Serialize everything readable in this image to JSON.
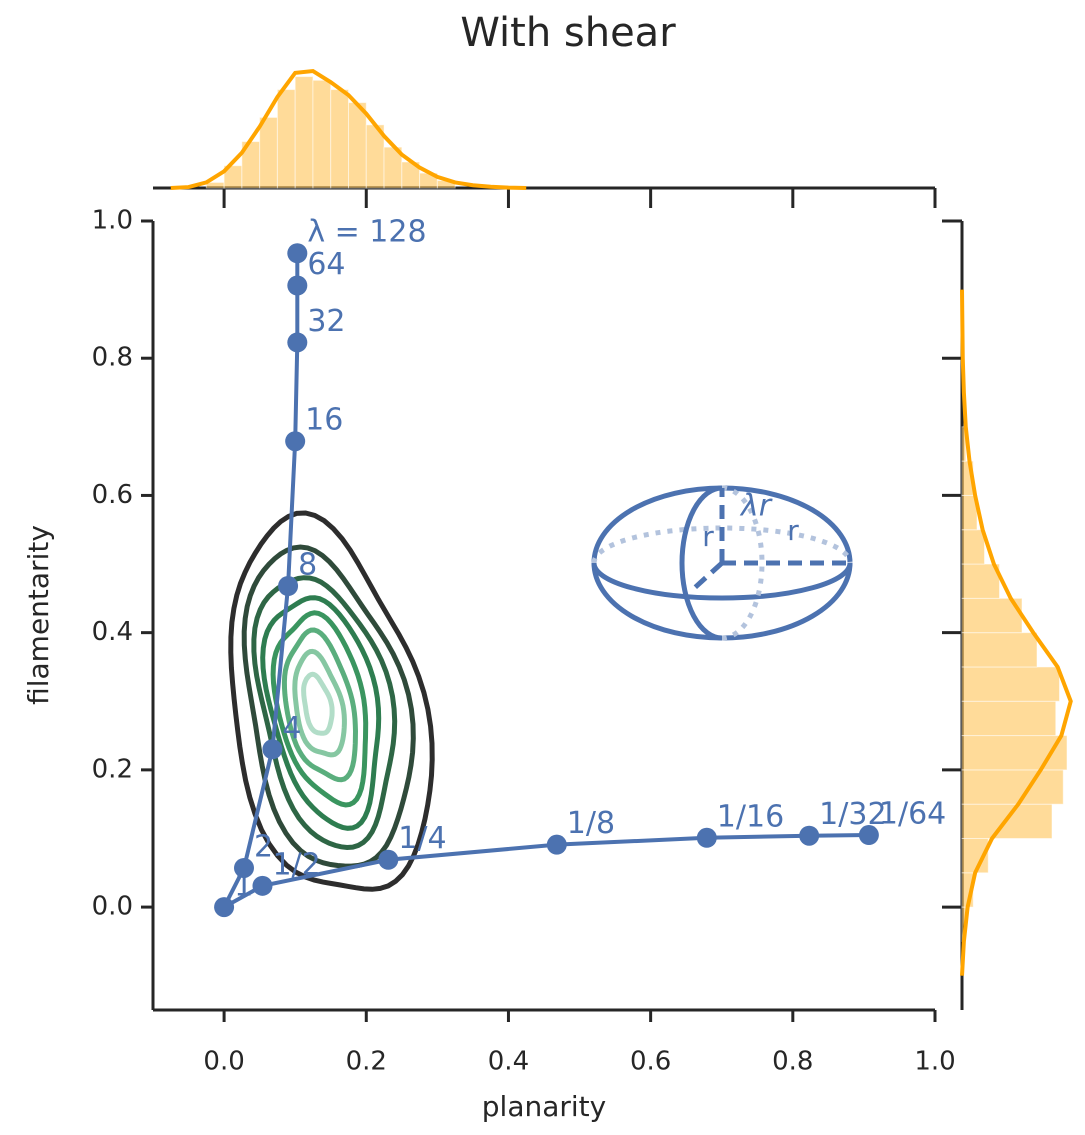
{
  "chart_data": [
    {
      "type": "line",
      "title": "With shear",
      "xlabel": "planarity",
      "ylabel": "filamentarity",
      "xlim": [
        -0.1,
        1.0
      ],
      "ylim": [
        -0.15,
        1.0
      ],
      "xticks": [
        {
          "value": 0,
          "label": "0.0"
        },
        {
          "value": 0.2,
          "label": "0.2"
        },
        {
          "value": 0.4,
          "label": "0.4"
        },
        {
          "value": 0.6,
          "label": "0.6"
        },
        {
          "value": 0.8,
          "label": "0.8"
        },
        {
          "value": 1.0,
          "label": "1.0"
        }
      ],
      "yticks": [
        {
          "value": 0,
          "label": "0.0"
        },
        {
          "value": 0.2,
          "label": "0.2"
        },
        {
          "value": 0.4,
          "label": "0.4"
        },
        {
          "value": 0.6,
          "label": "0.6"
        },
        {
          "value": 0.8,
          "label": "0.8"
        },
        {
          "value": 1.0,
          "label": "1.0"
        }
      ],
      "series": [
        {
          "color": "#4c72b0",
          "x": [
            0.103,
            0.103,
            0.103,
            0.1,
            0.09,
            0.068,
            0.028,
            0,
            0.054,
            0.231,
            0.468,
            0.679,
            0.823,
            0.907
          ],
          "values": [
            0.953,
            0.906,
            0.823,
            0.679,
            0.468,
            0.23,
            0.057,
            0,
            0.031,
            0.069,
            0.091,
            0.101,
            0.104,
            0.105
          ],
          "point_labels": [
            "λ = 128",
            "64",
            "32",
            "16",
            "8",
            "4",
            "2",
            "1",
            "1/2",
            "1/4",
            "1/8",
            "1/16",
            "1/32",
            "1/64"
          ]
        }
      ],
      "annotations": [
        "λr",
        "r",
        "r"
      ]
    },
    {
      "type": "histogram",
      "orientation": "vertical",
      "color": "#ffa500",
      "xlim": [
        -0.1,
        1.0
      ],
      "ylim": [
        0,
        7
      ],
      "bins": [
        -0.025,
        0,
        0.025,
        0.05,
        0.075,
        0.1,
        0.125,
        0.15,
        0.175,
        0.2,
        0.225,
        0.25,
        0.275,
        0.3,
        0.325
      ],
      "values": [
        0.3,
        1.2,
        2.5,
        3.8,
        5.3,
        6.0,
        5.8,
        5.3,
        4.6,
        3.4,
        2.2,
        1.4,
        0.8,
        0.4
      ],
      "kde": {
        "x": [
          -0.075,
          -0.05,
          -0.025,
          0,
          0.025,
          0.05,
          0.075,
          0.1,
          0.125,
          0.15,
          0.175,
          0.2,
          0.225,
          0.25,
          0.275,
          0.3,
          0.325,
          0.35,
          0.375,
          0.4,
          0.425
        ],
        "values": [
          0,
          0.05,
          0.3,
          0.9,
          1.9,
          3.3,
          4.9,
          6.2,
          6.3,
          5.7,
          5.0,
          4.0,
          2.8,
          1.8,
          1.1,
          0.6,
          0.3,
          0.15,
          0.07,
          0.02,
          0
        ]
      }
    },
    {
      "type": "histogram",
      "orientation": "horizontal",
      "color": "#ffa500",
      "xlim": [
        0,
        3.2
      ],
      "ylim": [
        -0.15,
        1.0
      ],
      "bins": [
        -0.05,
        0,
        0.05,
        0.1,
        0.15,
        0.2,
        0.25,
        0.3,
        0.35,
        0.4,
        0.45,
        0.5,
        0.55,
        0.6,
        0.65,
        0.7
      ],
      "values": [
        0.1,
        0.3,
        0.7,
        2.4,
        2.7,
        2.8,
        2.5,
        2.6,
        2.0,
        1.6,
        1.0,
        0.6,
        0.4,
        0.3,
        0.1
      ],
      "kde": {
        "x": [
          -0.1,
          -0.05,
          0,
          0.05,
          0.1,
          0.15,
          0.2,
          0.25,
          0.3,
          0.35,
          0.4,
          0.45,
          0.5,
          0.55,
          0.6,
          0.65,
          0.7,
          0.75,
          0.8,
          0.85,
          0.9
        ],
        "values": [
          0,
          0.05,
          0.15,
          0.35,
          0.8,
          1.5,
          2.1,
          2.65,
          2.9,
          2.55,
          1.9,
          1.3,
          0.85,
          0.55,
          0.35,
          0.2,
          0.1,
          0.05,
          0.02,
          0.01,
          0
        ]
      }
    }
  ]
}
